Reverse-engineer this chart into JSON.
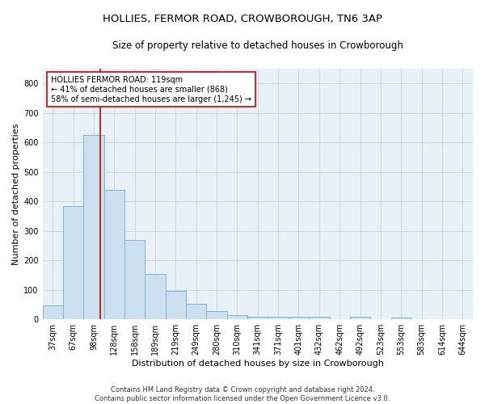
{
  "title": "HOLLIES, FERMOR ROAD, CROWBOROUGH, TN6 3AP",
  "subtitle": "Size of property relative to detached houses in Crowborough",
  "xlabel": "Distribution of detached houses by size in Crowborough",
  "ylabel": "Number of detached properties",
  "footnote": "Contains HM Land Registry data © Crown copyright and database right 2024.\nContains public sector information licensed under the Open Government Licence v3.0.",
  "categories": [
    "37sqm",
    "67sqm",
    "98sqm",
    "128sqm",
    "158sqm",
    "189sqm",
    "219sqm",
    "249sqm",
    "280sqm",
    "310sqm",
    "341sqm",
    "371sqm",
    "401sqm",
    "432sqm",
    "462sqm",
    "492sqm",
    "523sqm",
    "553sqm",
    "583sqm",
    "614sqm",
    "644sqm"
  ],
  "values": [
    46,
    385,
    625,
    438,
    268,
    155,
    97,
    52,
    27,
    15,
    10,
    10,
    10,
    10,
    0,
    10,
    0,
    7,
    0,
    0,
    0
  ],
  "bar_color": "#cce0f0",
  "bar_edge_color": "#7ab8d9",
  "vline_x": 2.33,
  "vline_color": "#cc0000",
  "annotation_text": "HOLLIES FERMOR ROAD: 119sqm\n← 41% of detached houses are smaller (868)\n58% of semi-detached houses are larger (1,245) →",
  "annotation_box_color": "#ffffff",
  "annotation_box_edge": "#cc0000",
  "ylim": [
    0,
    850
  ],
  "yticks": [
    0,
    100,
    200,
    300,
    400,
    500,
    600,
    700,
    800
  ],
  "ax_facecolor": "#e8f0f8",
  "background_color": "#ffffff",
  "grid_color": "#c8d4e0",
  "title_fontsize": 9.5,
  "subtitle_fontsize": 8.5,
  "xlabel_fontsize": 8,
  "ylabel_fontsize": 8,
  "tick_fontsize": 7,
  "annotation_fontsize": 7,
  "footnote_fontsize": 6
}
